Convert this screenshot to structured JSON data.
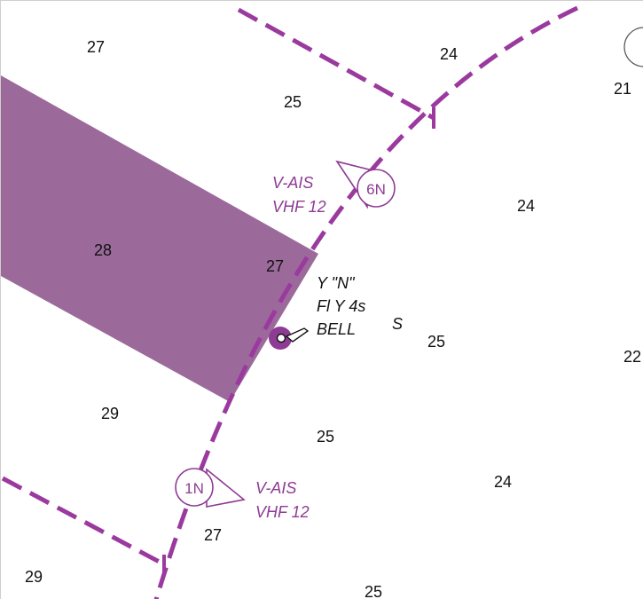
{
  "colors": {
    "restricted_area_fill": "#9b6a9b",
    "boundary_line": "#9b3a9e",
    "ais_symbol": "#8e3b94",
    "buoy_fill": "#8e3b94",
    "text": "#111111"
  },
  "soundings": [
    "27",
    "24",
    "21",
    "25",
    "24",
    "28",
    "27",
    "25",
    "22",
    "29",
    "25",
    "24",
    "27",
    "29",
    "25"
  ],
  "ais_stations": [
    {
      "id": "6N",
      "line1": "V-AIS",
      "line2": "VHF 12",
      "icon": "ais-virtual-aid-symbol"
    },
    {
      "id": "1N",
      "line1": "V-AIS",
      "line2": "VHF 12",
      "icon": "ais-virtual-aid-symbol"
    }
  ],
  "buoy": {
    "line1": "Y \"N\"",
    "line2": "Fl Y 4s",
    "line3": "BELL",
    "bottom_mark": "S",
    "icon": "lighted-buoy-symbol"
  }
}
